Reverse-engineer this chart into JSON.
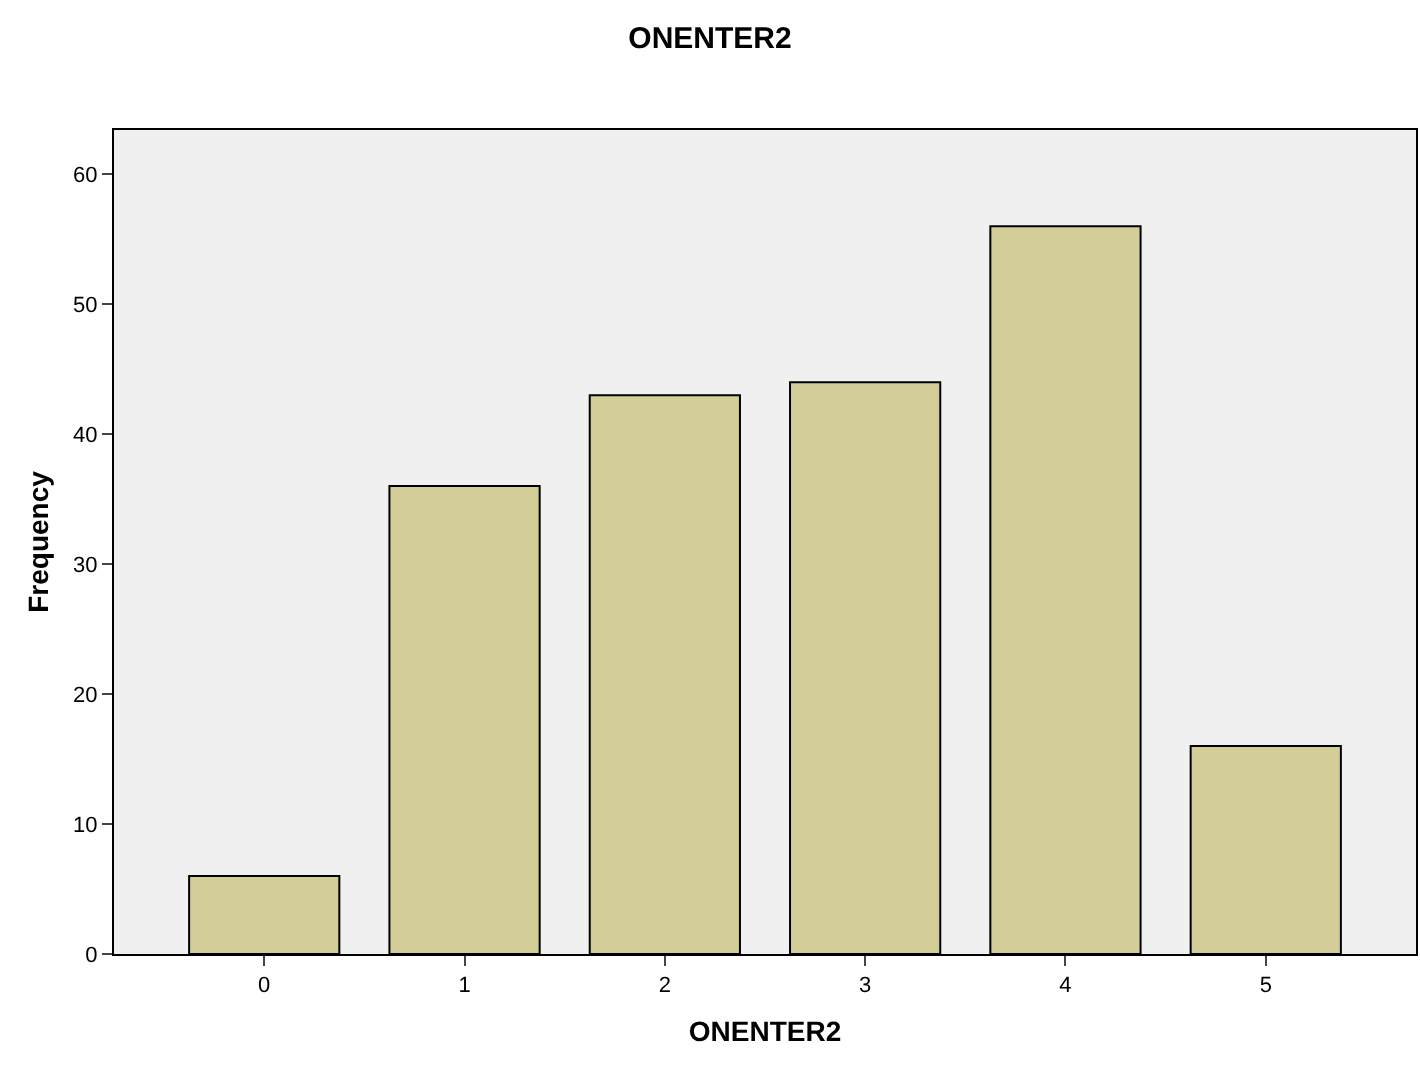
{
  "chart_data": {
    "type": "bar",
    "title": "ONENTER2",
    "xlabel": "ONENTER2",
    "ylabel": "Frequency",
    "categories": [
      "0",
      "1",
      "2",
      "3",
      "4",
      "5"
    ],
    "values": [
      6,
      36,
      43,
      44,
      56,
      16
    ],
    "color": "#d3ce98",
    "ylim": [
      0,
      63.4
    ],
    "yticks": [
      0,
      10,
      20,
      30,
      40,
      50,
      60
    ],
    "grid": false
  }
}
